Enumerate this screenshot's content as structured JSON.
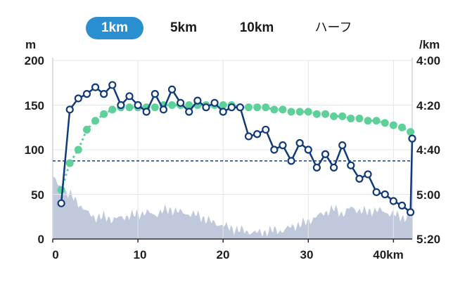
{
  "tabs": [
    {
      "label": "1km",
      "active": true
    },
    {
      "label": "5km",
      "active": false
    },
    {
      "label": "10km",
      "active": false
    },
    {
      "label": "ハーフ",
      "active": false
    }
  ],
  "chart_data": {
    "type": "line",
    "left_axis": {
      "unit": "m",
      "ticks": [
        "200",
        "150",
        "100",
        "50",
        "0"
      ],
      "range": [
        0,
        200
      ]
    },
    "right_axis": {
      "unit": "/km",
      "ticks": [
        "4:00",
        "4:20",
        "4:40",
        "5:00",
        "5:20"
      ],
      "range_seconds_per_km": [
        240,
        320
      ]
    },
    "x_axis": {
      "ticks": [
        "0",
        "10",
        "20",
        "30",
        "40km"
      ],
      "range": [
        0,
        42.2
      ]
    },
    "colors": {
      "pace": "#123a7a",
      "trend": "#5ed09a",
      "elevation": "#b5c0d6",
      "reference": "#123a7a"
    },
    "reference_line": {
      "pace": "4:45",
      "style": "dashed"
    },
    "series": [
      {
        "key": "pace",
        "style": "line-with-hollow-markers",
        "x": [
          1,
          2,
          3,
          4,
          5,
          6,
          7,
          8,
          9,
          10,
          11,
          12,
          13,
          14,
          15,
          16,
          17,
          18,
          19,
          20,
          21,
          22,
          23,
          24,
          25,
          26,
          27,
          28,
          29,
          30,
          31,
          32,
          33,
          34,
          35,
          36,
          37,
          38,
          39,
          40,
          41,
          42,
          42.2
        ],
        "y": [
          "5:04",
          "4:22",
          "4:17",
          "4:15",
          "4:12",
          "4:15",
          "4:11",
          "4:20",
          "4:16",
          "4:20",
          "4:23",
          "4:15",
          "4:22",
          "4:13",
          "4:19",
          "4:23",
          "4:18",
          "4:21",
          "4:19",
          "4:23",
          "4:21",
          "4:21",
          "4:34",
          "4:33",
          "4:31",
          "4:40",
          "4:38",
          "4:45",
          "4:37",
          "4:40",
          "4:48",
          "4:42",
          "4:48",
          "4:38",
          "4:47",
          "4:53",
          "4:51",
          "4:59",
          "5:00",
          "5:03",
          "5:05",
          "5:08",
          "4:35"
        ]
      },
      {
        "key": "trend",
        "style": "dotted",
        "x": [
          1,
          2,
          3,
          4,
          5,
          6,
          7,
          8,
          9,
          10,
          11,
          12,
          13,
          14,
          15,
          16,
          17,
          18,
          19,
          20,
          21,
          22,
          23,
          24,
          25,
          26,
          27,
          28,
          29,
          30,
          31,
          32,
          33,
          34,
          35,
          36,
          37,
          38,
          39,
          40,
          41,
          42
        ],
        "y": [
          "4:58",
          "4:46",
          "4:40",
          "4:31",
          "4:27",
          "4:24",
          "4:22",
          "4:21",
          "4:21",
          "4:21",
          "4:21",
          "4:21",
          "4:20",
          "4:20",
          "4:20",
          "4:20",
          "4:20",
          "4:20",
          "4:20",
          "4:20",
          "4:20",
          "4:21",
          "4:21",
          "4:21",
          "4:21",
          "4:22",
          "4:22",
          "4:23",
          "4:23",
          "4:23",
          "4:24",
          "4:24",
          "4:25",
          "4:25",
          "4:26",
          "4:26",
          "4:27",
          "4:27",
          "4:28",
          "4:29",
          "4:30",
          "4:32"
        ]
      },
      {
        "key": "elevation",
        "style": "area",
        "x": [
          0,
          1,
          2,
          3,
          4,
          5,
          6,
          7,
          8,
          9,
          10,
          11,
          12,
          13,
          14,
          15,
          16,
          17,
          18,
          19,
          20,
          21,
          22,
          23,
          24,
          25,
          26,
          27,
          28,
          29,
          30,
          31,
          32,
          33,
          34,
          35,
          36,
          37,
          38,
          39,
          40,
          41,
          42.2
        ],
        "y": [
          70,
          55,
          50,
          40,
          30,
          24,
          25,
          22,
          24,
          26,
          28,
          30,
          27,
          32,
          33,
          30,
          28,
          27,
          22,
          18,
          15,
          12,
          10,
          8,
          7,
          8,
          10,
          9,
          14,
          16,
          20,
          25,
          30,
          34,
          28,
          35,
          32,
          30,
          33,
          30,
          28,
          24,
          26
        ]
      }
    ]
  }
}
